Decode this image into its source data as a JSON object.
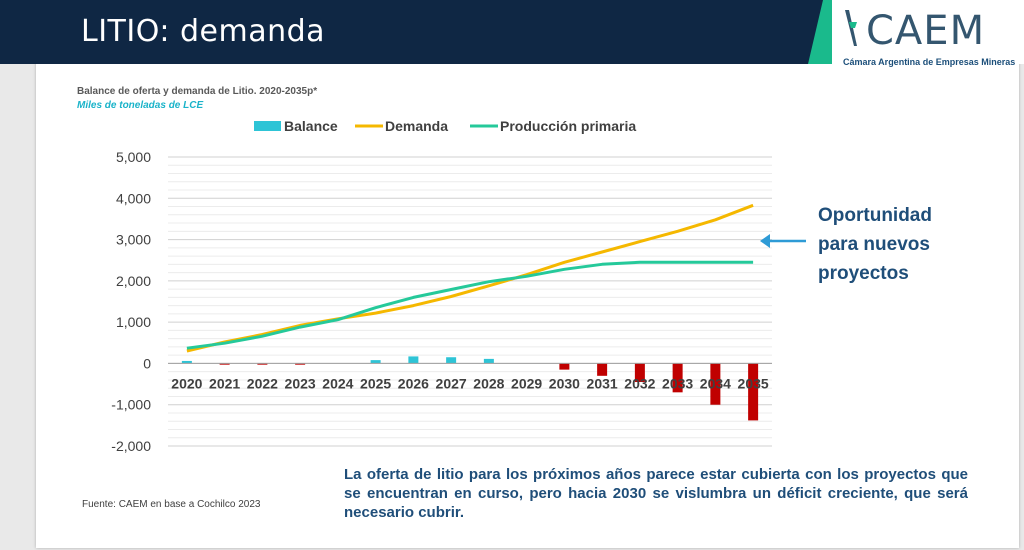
{
  "header": {
    "title": "LITIO: demanda",
    "band_color": "#0f2744",
    "accent_color": "#1aba8c"
  },
  "logo": {
    "name": "CAEM",
    "subtitle": "Cámara Argentina de Empresas Mineras",
    "color": "#34566f"
  },
  "chart_data": {
    "type": "bar+line",
    "title": "Balance de oferta y demanda de Litio. 2020-2035p*",
    "subtitle": "Miles de toneladas de LCE",
    "categories": [
      "2020",
      "2021",
      "2022",
      "2023",
      "2024",
      "2025",
      "2026",
      "2027",
      "2028",
      "2029",
      "2030",
      "2031",
      "2032",
      "2033",
      "2034",
      "2035"
    ],
    "ylim": [
      -2000,
      5000
    ],
    "yticks": [
      "5,000",
      "4,000",
      "3,000",
      "2,000",
      "1,000",
      "0",
      "-1,000",
      "-2,000"
    ],
    "legend_position": "top",
    "grid": true,
    "series": [
      {
        "name": "Balance",
        "kind": "bar",
        "color": "#2ec4d6",
        "negative_color": "#c00000",
        "values": [
          60,
          -30,
          -30,
          -30,
          0,
          80,
          170,
          150,
          110,
          0,
          -150,
          -300,
          -450,
          -700,
          -1000,
          -1380
        ]
      },
      {
        "name": "Demanda",
        "kind": "line",
        "color": "#f5b800",
        "values": [
          300,
          520,
          700,
          920,
          1080,
          1220,
          1400,
          1620,
          1880,
          2150,
          2450,
          2700,
          2950,
          3200,
          3480,
          3830
        ]
      },
      {
        "name": "Producción primaria",
        "kind": "line",
        "color": "#25c99a",
        "values": [
          370,
          490,
          660,
          880,
          1060,
          1350,
          1600,
          1790,
          1980,
          2110,
          2280,
          2400,
          2450,
          2450,
          2450,
          2450
        ]
      }
    ]
  },
  "callout": {
    "lines": [
      "Oportunidad",
      "para nuevos",
      "proyectos"
    ],
    "arrow_color": "#2e9bd6"
  },
  "note": "La oferta de litio para los próximos años parece estar cubierta con los proyectos que se encuentran en curso, pero hacia 2030 se vislumbra un déficit creciente, que será necesario cubrir.",
  "source": "Fuente: CAEM en base a Cochilco 2023"
}
